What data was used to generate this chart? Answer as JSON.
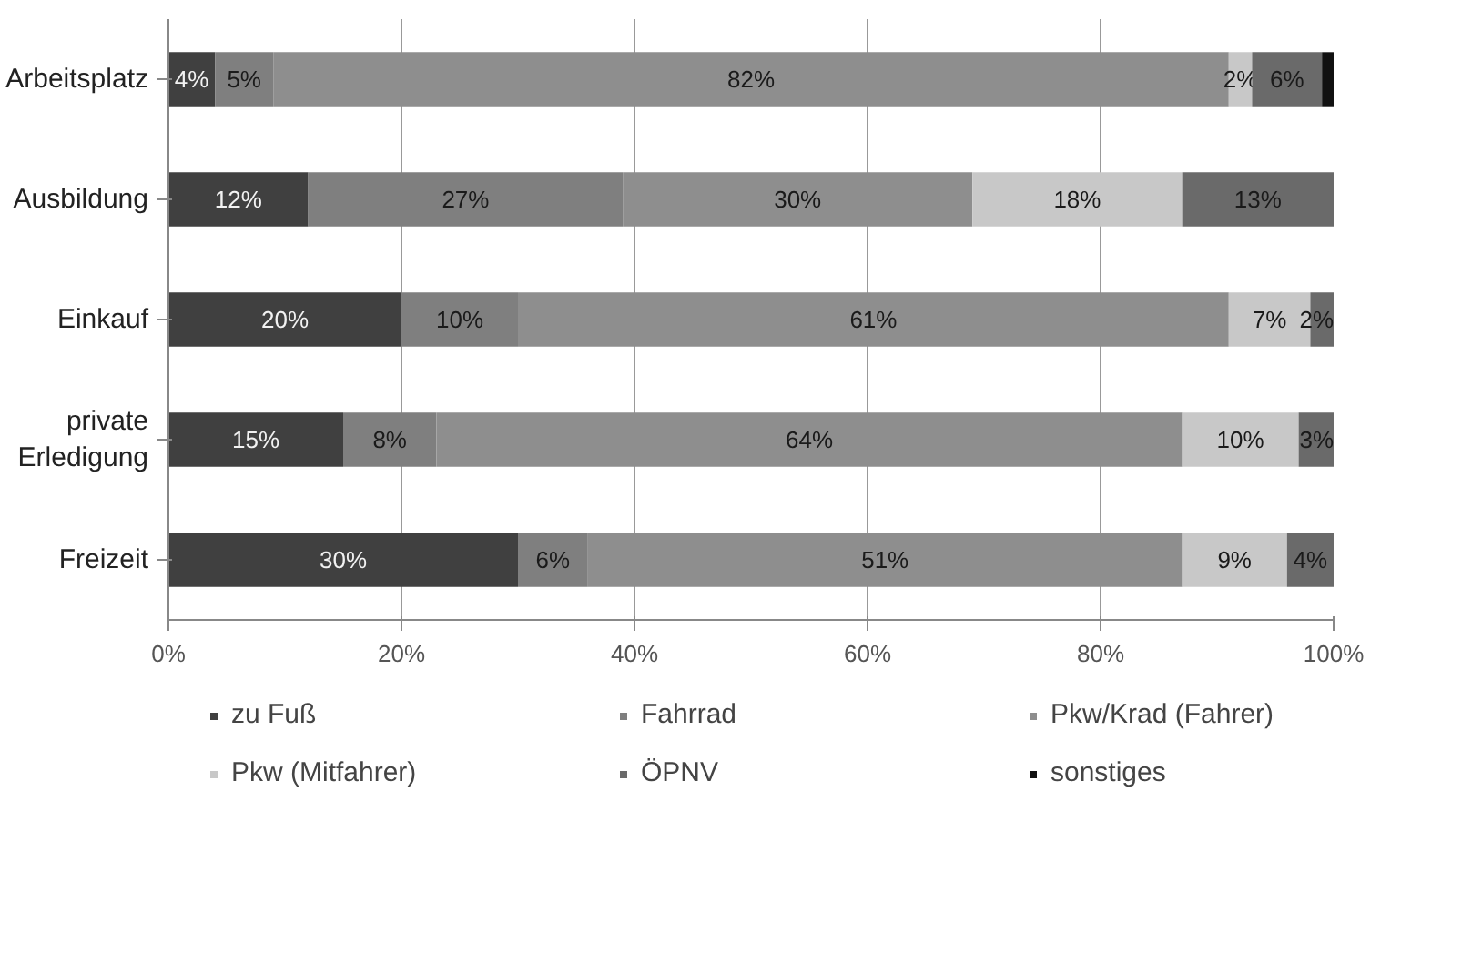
{
  "chart_data": {
    "type": "bar",
    "orientation": "horizontal",
    "stacked": true,
    "categories": [
      "Arbeitsplatz",
      "Ausbildung",
      "Einkauf",
      "private\nErledigung",
      "Freizeit"
    ],
    "series": [
      {
        "name": "zu Fuß",
        "color": "#404040",
        "values": [
          4,
          12,
          20,
          15,
          30
        ],
        "value_labels": [
          "4%",
          "12%",
          "20%",
          "15%",
          "30%"
        ]
      },
      {
        "name": "Fahrrad",
        "color": "#7f7f7f",
        "values": [
          5,
          27,
          10,
          8,
          6
        ],
        "value_labels": [
          "5%",
          "27%",
          "10%",
          "8%",
          "6%"
        ]
      },
      {
        "name": "Pkw/Krad (Fahrer)",
        "color": "#8e8e8e",
        "values": [
          82,
          30,
          61,
          64,
          51
        ],
        "value_labels": [
          "82%",
          "30%",
          "61%",
          "64%",
          "51%"
        ]
      },
      {
        "name": "Pkw (Mitfahrer)",
        "color": "#c8c8c8",
        "values": [
          2,
          18,
          7,
          10,
          9
        ],
        "value_labels": [
          "2%",
          "18%",
          "7%",
          "10%",
          "9%"
        ]
      },
      {
        "name": "ÖPNV",
        "color": "#6a6a6a",
        "values": [
          6,
          13,
          2,
          3,
          4
        ],
        "value_labels": [
          "6%",
          "13%",
          "2%",
          "3%",
          "4%"
        ]
      },
      {
        "name": "sonstiges",
        "color": "#111111",
        "values": [
          1,
          0,
          0,
          0,
          0
        ],
        "value_labels": [
          null,
          null,
          null,
          null,
          null
        ]
      }
    ],
    "xlim": [
      0,
      100
    ],
    "xticks": [
      {
        "value": 0,
        "label": "0%"
      },
      {
        "value": 20,
        "label": "20%"
      },
      {
        "value": 40,
        "label": "40%"
      },
      {
        "value": 60,
        "label": "60%"
      },
      {
        "value": 80,
        "label": "80%"
      },
      {
        "value": 100,
        "label": "100%"
      }
    ],
    "grid": "x",
    "legend": "bottom"
  }
}
